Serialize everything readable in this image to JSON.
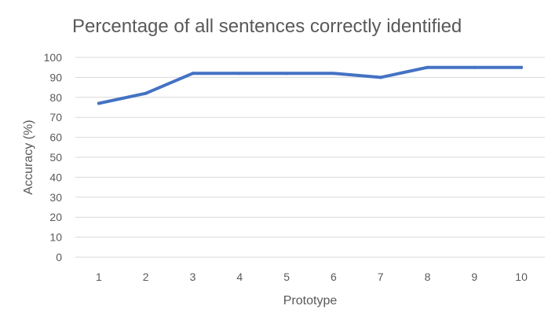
{
  "chart_data": {
    "type": "line",
    "title": "Percentage of all sentences correctly identified",
    "xlabel": "Prototype",
    "ylabel": "Accuracy (%)",
    "categories": [
      "1",
      "2",
      "3",
      "4",
      "5",
      "6",
      "7",
      "8",
      "9",
      "10"
    ],
    "series": [
      {
        "values": [
          77,
          82,
          92,
          92,
          92,
          92,
          90,
          95,
          95,
          95
        ]
      }
    ],
    "ylim": [
      0,
      100
    ],
    "yticks": [
      0,
      10,
      20,
      30,
      40,
      50,
      60,
      70,
      80,
      90,
      100
    ],
    "grid": true,
    "legend": "none",
    "colors": {
      "series": "#4472c4",
      "grid": "#d9d9d9",
      "text": "#595959"
    }
  }
}
